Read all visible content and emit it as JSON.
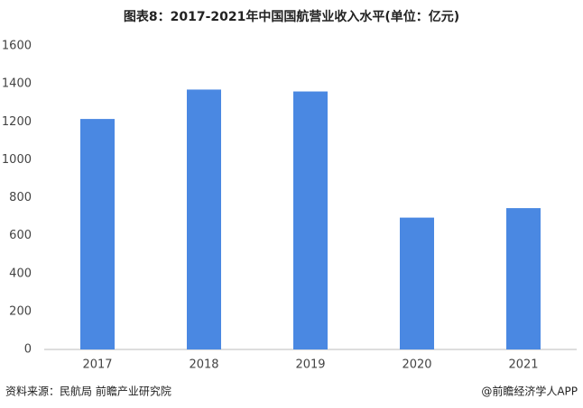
{
  "chart_data": {
    "type": "bar",
    "title": "图表8：2017-2021年中国国航营业收入水平(单位：亿元)",
    "categories": [
      "2017",
      "2018",
      "2019",
      "2020",
      "2021"
    ],
    "values": [
      1215,
      1370,
      1360,
      695,
      745
    ],
    "color": "#4a88e2",
    "ylim": [
      0,
      1600
    ],
    "yticks": [
      0,
      200,
      400,
      600,
      800,
      1000,
      1200,
      1400,
      1600
    ],
    "grid": false,
    "source": "资料来源：民航局 前瞻产业研究院",
    "credit": "@前瞻经济学人APP"
  }
}
